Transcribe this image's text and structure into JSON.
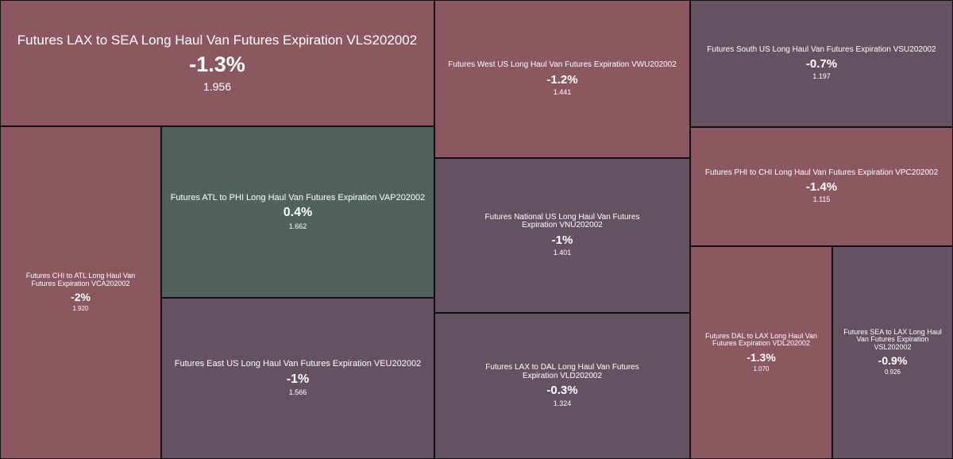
{
  "colors": {
    "negative_strong": "#8b5862",
    "negative_mild": "#655260",
    "positive": "#51625e",
    "border": "#111111",
    "text": "#ffffff"
  },
  "chart_data": {
    "type": "treemap",
    "tiles": [
      {
        "name": "Futures LAX to SEA Long Haul Van Futures Expiration VLS202002",
        "change": "-1.3%",
        "value": "1.956",
        "change_pct": -1.3,
        "price": 1.956
      },
      {
        "name": "Futures West US Long Haul Van Futures Expiration VWU202002",
        "change": "-1.2%",
        "value": "1.441",
        "change_pct": -1.2,
        "price": 1.441
      },
      {
        "name": "Futures South US Long Haul Van Futures Expiration VSU202002",
        "change": "-0.7%",
        "value": "1.197",
        "change_pct": -0.7,
        "price": 1.197
      },
      {
        "name": "Futures CHI to ATL Long Haul Van Futures Expiration VCA202002",
        "change": "-2%",
        "value": "1.920",
        "change_pct": -2,
        "price": 1.92
      },
      {
        "name": "Futures ATL to PHI Long Haul Van Futures Expiration VAP202002",
        "change": "0.4%",
        "value": "1.662",
        "change_pct": 0.4,
        "price": 1.662
      },
      {
        "name": "Futures National US Long Haul Van Futures Expiration VNU202002",
        "change": "-1%",
        "value": "1.401",
        "change_pct": -1,
        "price": 1.401
      },
      {
        "name": "Futures PHI to CHI Long Haul Van Futures Expiration VPC202002",
        "change": "-1.4%",
        "value": "1.115",
        "change_pct": -1.4,
        "price": 1.115
      },
      {
        "name": "Futures East US Long Haul Van Futures Expiration VEU202002",
        "change": "-1%",
        "value": "1.566",
        "change_pct": -1,
        "price": 1.566
      },
      {
        "name": "Futures LAX to DAL Long Haul Van Futures Expiration VLD202002",
        "change": "-0.3%",
        "value": "1.324",
        "change_pct": -0.3,
        "price": 1.324
      },
      {
        "name": "Futures DAL to LAX Long Haul Van Futures Expiration VDL202002",
        "change": "-1.3%",
        "value": "1.070",
        "change_pct": -1.3,
        "price": 1.07
      },
      {
        "name": "Futures SEA to LAX Long Haul Van Futures Expiration VSL202002",
        "change": "-0.9%",
        "value": "0.926",
        "change_pct": -0.9,
        "price": 0.926
      }
    ]
  }
}
